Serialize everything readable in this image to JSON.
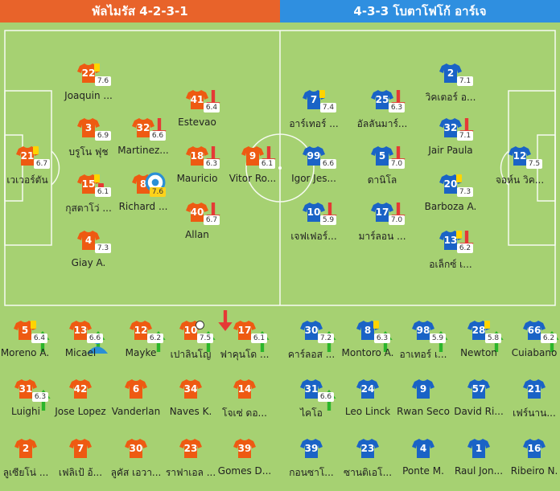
{
  "header": {
    "home": "พัลไมรัส 4-2-3-1",
    "away": "4-3-3 โบตาโฟโก้ อาร์เจ"
  },
  "colors": {
    "home_shirt": "#ee5a12",
    "away_shirt": "#1a63c6",
    "pitch": "#a6d172",
    "lines": "#ffffff",
    "up_arrow": "#2bb52b",
    "down_arrow": "#e53935",
    "yellow_card": "#ffd400",
    "red_card": "#e53935",
    "rating_highlight": "#ffd21a"
  },
  "lineup": [
    {
      "team": "home",
      "num": "21",
      "name": "เวเวอร์ตัน",
      "rating": "6.7",
      "icons": [
        "yellow-card"
      ]
    },
    {
      "team": "home",
      "num": "22",
      "name": "Joaquin ...",
      "rating": "7.6",
      "icons": [
        "yellow-card"
      ]
    },
    {
      "team": "home",
      "num": "3",
      "name": "บรูโน ฟุช",
      "rating": "6.9",
      "icons": []
    },
    {
      "team": "home",
      "num": "15",
      "name": "กุสตาโว่ ...",
      "rating": "6.1",
      "icons": [
        "yellow-card",
        "red-card"
      ]
    },
    {
      "team": "home",
      "num": "4",
      "name": "Giay A.",
      "rating": "7.3",
      "icons": []
    },
    {
      "team": "home",
      "num": "32",
      "name": "Martinez...",
      "rating": "6.6",
      "icons": [
        "down-arrow"
      ]
    },
    {
      "team": "home",
      "num": "8",
      "name": "Richard ...",
      "rating": "7.6",
      "hi": true,
      "icons": [
        "captain"
      ]
    },
    {
      "team": "home",
      "num": "41",
      "name": "Estevao",
      "rating": "6.4",
      "icons": [
        "down-arrow"
      ]
    },
    {
      "team": "home",
      "num": "18",
      "name": "Mauricio",
      "rating": "6.3",
      "icons": [
        "down-arrow"
      ]
    },
    {
      "team": "home",
      "num": "40",
      "name": "Allan",
      "rating": "6.7",
      "icons": [
        "down-arrow"
      ]
    },
    {
      "team": "home",
      "num": "9",
      "name": "Vitor Ro...",
      "rating": "6.1",
      "icons": [
        "down-arrow"
      ]
    },
    {
      "team": "away",
      "num": "12",
      "name": "จอห์น วิค...",
      "rating": "7.5",
      "icons": []
    },
    {
      "team": "away",
      "num": "2",
      "name": "วิคเตอร์ อ...",
      "rating": "7.1",
      "icons": []
    },
    {
      "team": "away",
      "num": "32",
      "name": "Jair Paula",
      "rating": "7.1",
      "icons": [
        "down-arrow"
      ]
    },
    {
      "team": "away",
      "num": "20",
      "name": "Barboza A.",
      "rating": "7.3",
      "icons": [
        "yellow-card"
      ]
    },
    {
      "team": "away",
      "num": "13",
      "name": "อเล็กซ์ เ...",
      "rating": "6.2",
      "icons": [
        "yellow-card",
        "down-arrow"
      ]
    },
    {
      "team": "away",
      "num": "25",
      "name": "อัลลันมาร์...",
      "rating": "6.3",
      "icons": [
        "down-arrow"
      ]
    },
    {
      "team": "away",
      "num": "5",
      "name": "ดานิโล",
      "rating": "7.0",
      "icons": [
        "down-arrow"
      ]
    },
    {
      "team": "away",
      "num": "17",
      "name": "มาร์ลอน ...",
      "rating": "7.0",
      "icons": [
        "down-arrow"
      ]
    },
    {
      "team": "away",
      "num": "7",
      "name": "อาร์เทอร์ ...",
      "rating": "7.4",
      "icons": [
        "yellow-card"
      ]
    },
    {
      "team": "away",
      "num": "99",
      "name": "Igor Jes...",
      "rating": "6.6",
      "icons": []
    },
    {
      "team": "away",
      "num": "10",
      "name": "เจฟเฟอร์...",
      "rating": "5.9",
      "icons": [
        "down-arrow"
      ]
    }
  ],
  "subs": [
    {
      "team": "home",
      "num": "5",
      "name": "Moreno A.",
      "rating": "6.4",
      "icons": [
        "yellow-card",
        "up-arrow"
      ]
    },
    {
      "team": "home",
      "num": "13",
      "name": "Micael",
      "rating": "6.6",
      "icons": [
        "up-arrow",
        "assist"
      ]
    },
    {
      "team": "home",
      "num": "12",
      "name": "Mayke",
      "rating": "6.2",
      "icons": [
        "up-arrow"
      ]
    },
    {
      "team": "home",
      "num": "10",
      "name": "เปาลินโญ",
      "rating": "7.5",
      "icons": [
        "down-arrow-top",
        "ball",
        "up-arrow"
      ]
    },
    {
      "team": "home",
      "num": "17",
      "name": "ฟาคุนโด ...",
      "rating": "6.1",
      "icons": [
        "up-arrow"
      ]
    },
    {
      "team": "home",
      "num": "31",
      "name": "Luighi",
      "rating": "6.3",
      "icons": [
        "up-arrow"
      ]
    },
    {
      "team": "home",
      "num": "42",
      "name": "Jose Lopez",
      "rating": "",
      "icons": []
    },
    {
      "team": "home",
      "num": "6",
      "name": "Vanderlan",
      "rating": "",
      "icons": []
    },
    {
      "team": "home",
      "num": "34",
      "name": "Naves K.",
      "rating": "",
      "icons": []
    },
    {
      "team": "home",
      "num": "14",
      "name": "โจเซ่ ดอ...",
      "rating": "",
      "icons": []
    },
    {
      "team": "home",
      "num": "2",
      "name": "ลูเซียโน่ ...",
      "rating": "",
      "icons": []
    },
    {
      "team": "home",
      "num": "7",
      "name": "เฟลิเป้ อ้...",
      "rating": "",
      "icons": []
    },
    {
      "team": "home",
      "num": "30",
      "name": "ลูคัส เอวา...",
      "rating": "",
      "icons": []
    },
    {
      "team": "home",
      "num": "23",
      "name": "ราฟาเอล ...",
      "rating": "",
      "icons": []
    },
    {
      "team": "home",
      "num": "39",
      "name": "Gomes D...",
      "rating": "",
      "icons": []
    },
    {
      "team": "away",
      "num": "30",
      "name": "คาร์ลอส ...",
      "rating": "7.2",
      "icons": [
        "up-arrow"
      ]
    },
    {
      "team": "away",
      "num": "8",
      "name": "Montoro A.",
      "rating": "6.3",
      "icons": [
        "yellow-card",
        "up-arrow"
      ]
    },
    {
      "team": "away",
      "num": "98",
      "name": "อาเทอร์ เ...",
      "rating": "5.9",
      "icons": [
        "up-arrow"
      ]
    },
    {
      "team": "away",
      "num": "28",
      "name": "Newton",
      "rating": "5.8",
      "icons": [
        "yellow-card",
        "up-arrow"
      ]
    },
    {
      "team": "away",
      "num": "66",
      "name": "Cuiabano",
      "rating": "6.2",
      "icons": [
        "up-arrow"
      ]
    },
    {
      "team": "away",
      "num": "31",
      "name": "ไคโอ",
      "rating": "6.6",
      "icons": [
        "up-arrow"
      ]
    },
    {
      "team": "away",
      "num": "24",
      "name": "Leo Linck",
      "rating": "",
      "icons": []
    },
    {
      "team": "away",
      "num": "9",
      "name": "Rwan Seco",
      "rating": "",
      "icons": []
    },
    {
      "team": "away",
      "num": "57",
      "name": "David Ri...",
      "rating": "",
      "icons": []
    },
    {
      "team": "away",
      "num": "21",
      "name": "เฟร์นาน...",
      "rating": "",
      "icons": []
    },
    {
      "team": "away",
      "num": "39",
      "name": "กอนซาโ...",
      "rating": "",
      "icons": []
    },
    {
      "team": "away",
      "num": "23",
      "name": "ซานติเอโ...",
      "rating": "",
      "icons": []
    },
    {
      "team": "away",
      "num": "4",
      "name": "Ponte M.",
      "rating": "",
      "icons": []
    },
    {
      "team": "away",
      "num": "1",
      "name": "Raul Jon...",
      "rating": "",
      "icons": []
    },
    {
      "team": "away",
      "num": "16",
      "name": "Ribeiro N.",
      "rating": "",
      "icons": []
    }
  ]
}
